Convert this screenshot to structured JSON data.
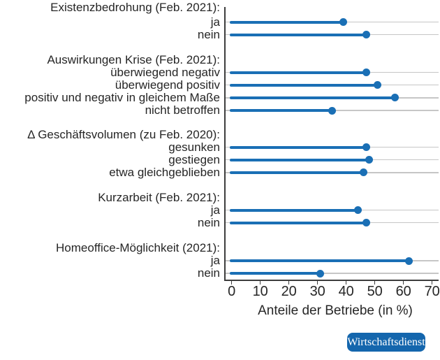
{
  "chart_data": {
    "type": "bar",
    "style": "horizontal-lollipop",
    "title": "",
    "xlabel": "Anteile der Betriebe (in %)",
    "ylabel": "",
    "xlim": [
      0,
      70
    ],
    "xticks": [
      0,
      10,
      20,
      30,
      40,
      50,
      60,
      70
    ],
    "grid": "horizontal-row-lines",
    "legend": "none",
    "groups": [
      {
        "header": "Existenzbedrohung (Feb. 2021):",
        "items": [
          {
            "label": "ja",
            "value": 39
          },
          {
            "label": "nein",
            "value": 47
          }
        ]
      },
      {
        "header": "Auswirkungen Krise (Feb. 2021):",
        "items": [
          {
            "label": "überwiegend negativ",
            "value": 47
          },
          {
            "label": "überwiegend positiv",
            "value": 51
          },
          {
            "label": "positiv und negativ in gleichem Maße",
            "value": 57
          },
          {
            "label": "nicht betroffen",
            "value": 35
          }
        ]
      },
      {
        "header": "Δ Geschäftsvolumen (zu Feb. 2020):",
        "items": [
          {
            "label": "gesunken",
            "value": 47
          },
          {
            "label": "gestiegen",
            "value": 48
          },
          {
            "label": "etwa gleichgeblieben",
            "value": 46
          }
        ]
      },
      {
        "header": "Kurzarbeit (Feb. 2021):",
        "items": [
          {
            "label": "ja",
            "value": 44
          },
          {
            "label": "nein",
            "value": 47
          }
        ]
      },
      {
        "header": "Homeoffice-Möglichkeit (2021):",
        "items": [
          {
            "label": "ja",
            "value": 62
          },
          {
            "label": "nein",
            "value": 31
          }
        ]
      }
    ],
    "colors": {
      "lollipop": "#1a6fb5",
      "gridline": "#c6c6c6",
      "axis": "#3d3d3d",
      "text": "#262626"
    }
  },
  "badge": {
    "label": "Wirtschaftsdienst",
    "bg": "#1466ad",
    "text_color": "#ffffff"
  }
}
